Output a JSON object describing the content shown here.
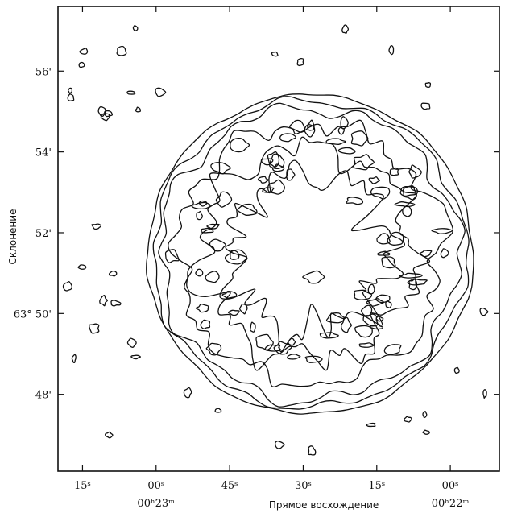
{
  "chart_data": {
    "type": "contour",
    "xlabel": "Прямое восхождение",
    "ylabel": "Склонение",
    "x_ticks": [
      {
        "label": "15ˢ",
        "ra_s": 1395
      },
      {
        "label": "00ˢ",
        "ra_s": 1380
      },
      {
        "label": "45ˢ",
        "ra_s": 1365
      },
      {
        "label": "30ˢ",
        "ra_s": 1350
      },
      {
        "label": "15ˢ",
        "ra_s": 1335
      },
      {
        "label": "00ˢ",
        "ra_s": 1320
      }
    ],
    "x_sublabels": [
      {
        "label": "00ʰ23ᵐ",
        "ra_s": 1380
      },
      {
        "label": "00ʰ22ᵐ",
        "ra_s": 1320
      }
    ],
    "y_ticks": [
      {
        "label": "56'",
        "dec_arcmin": 56
      },
      {
        "label": "54'",
        "dec_arcmin": 54
      },
      {
        "label": "52'",
        "dec_arcmin": 52
      },
      {
        "label": "63° 50'",
        "dec_arcmin": 50
      },
      {
        "label": "48'",
        "dec_arcmin": 48
      }
    ],
    "x_range_ra_s": [
      1400,
      1310
    ],
    "y_range_dec_arcmin": [
      46.1,
      57.6
    ],
    "grid": false,
    "source_center": {
      "ra_s": 1349.5,
      "dec_arcmin": 51.5
    },
    "contour_levels": [
      {
        "name": "outer",
        "radius_arcmin": 3.95
      },
      {
        "name": "level2",
        "radius_arcmin": 3.8
      },
      {
        "name": "level3",
        "radius_arcmin": 3.62
      },
      {
        "name": "level4",
        "radius_arcmin": 3.2
      },
      {
        "name": "level5",
        "radius_arcmin": 2.6
      },
      {
        "name": "level6",
        "radius_arcmin": 1.9
      }
    ],
    "inner_ring_blobs": 80,
    "outer_noise_blobs": 40
  }
}
